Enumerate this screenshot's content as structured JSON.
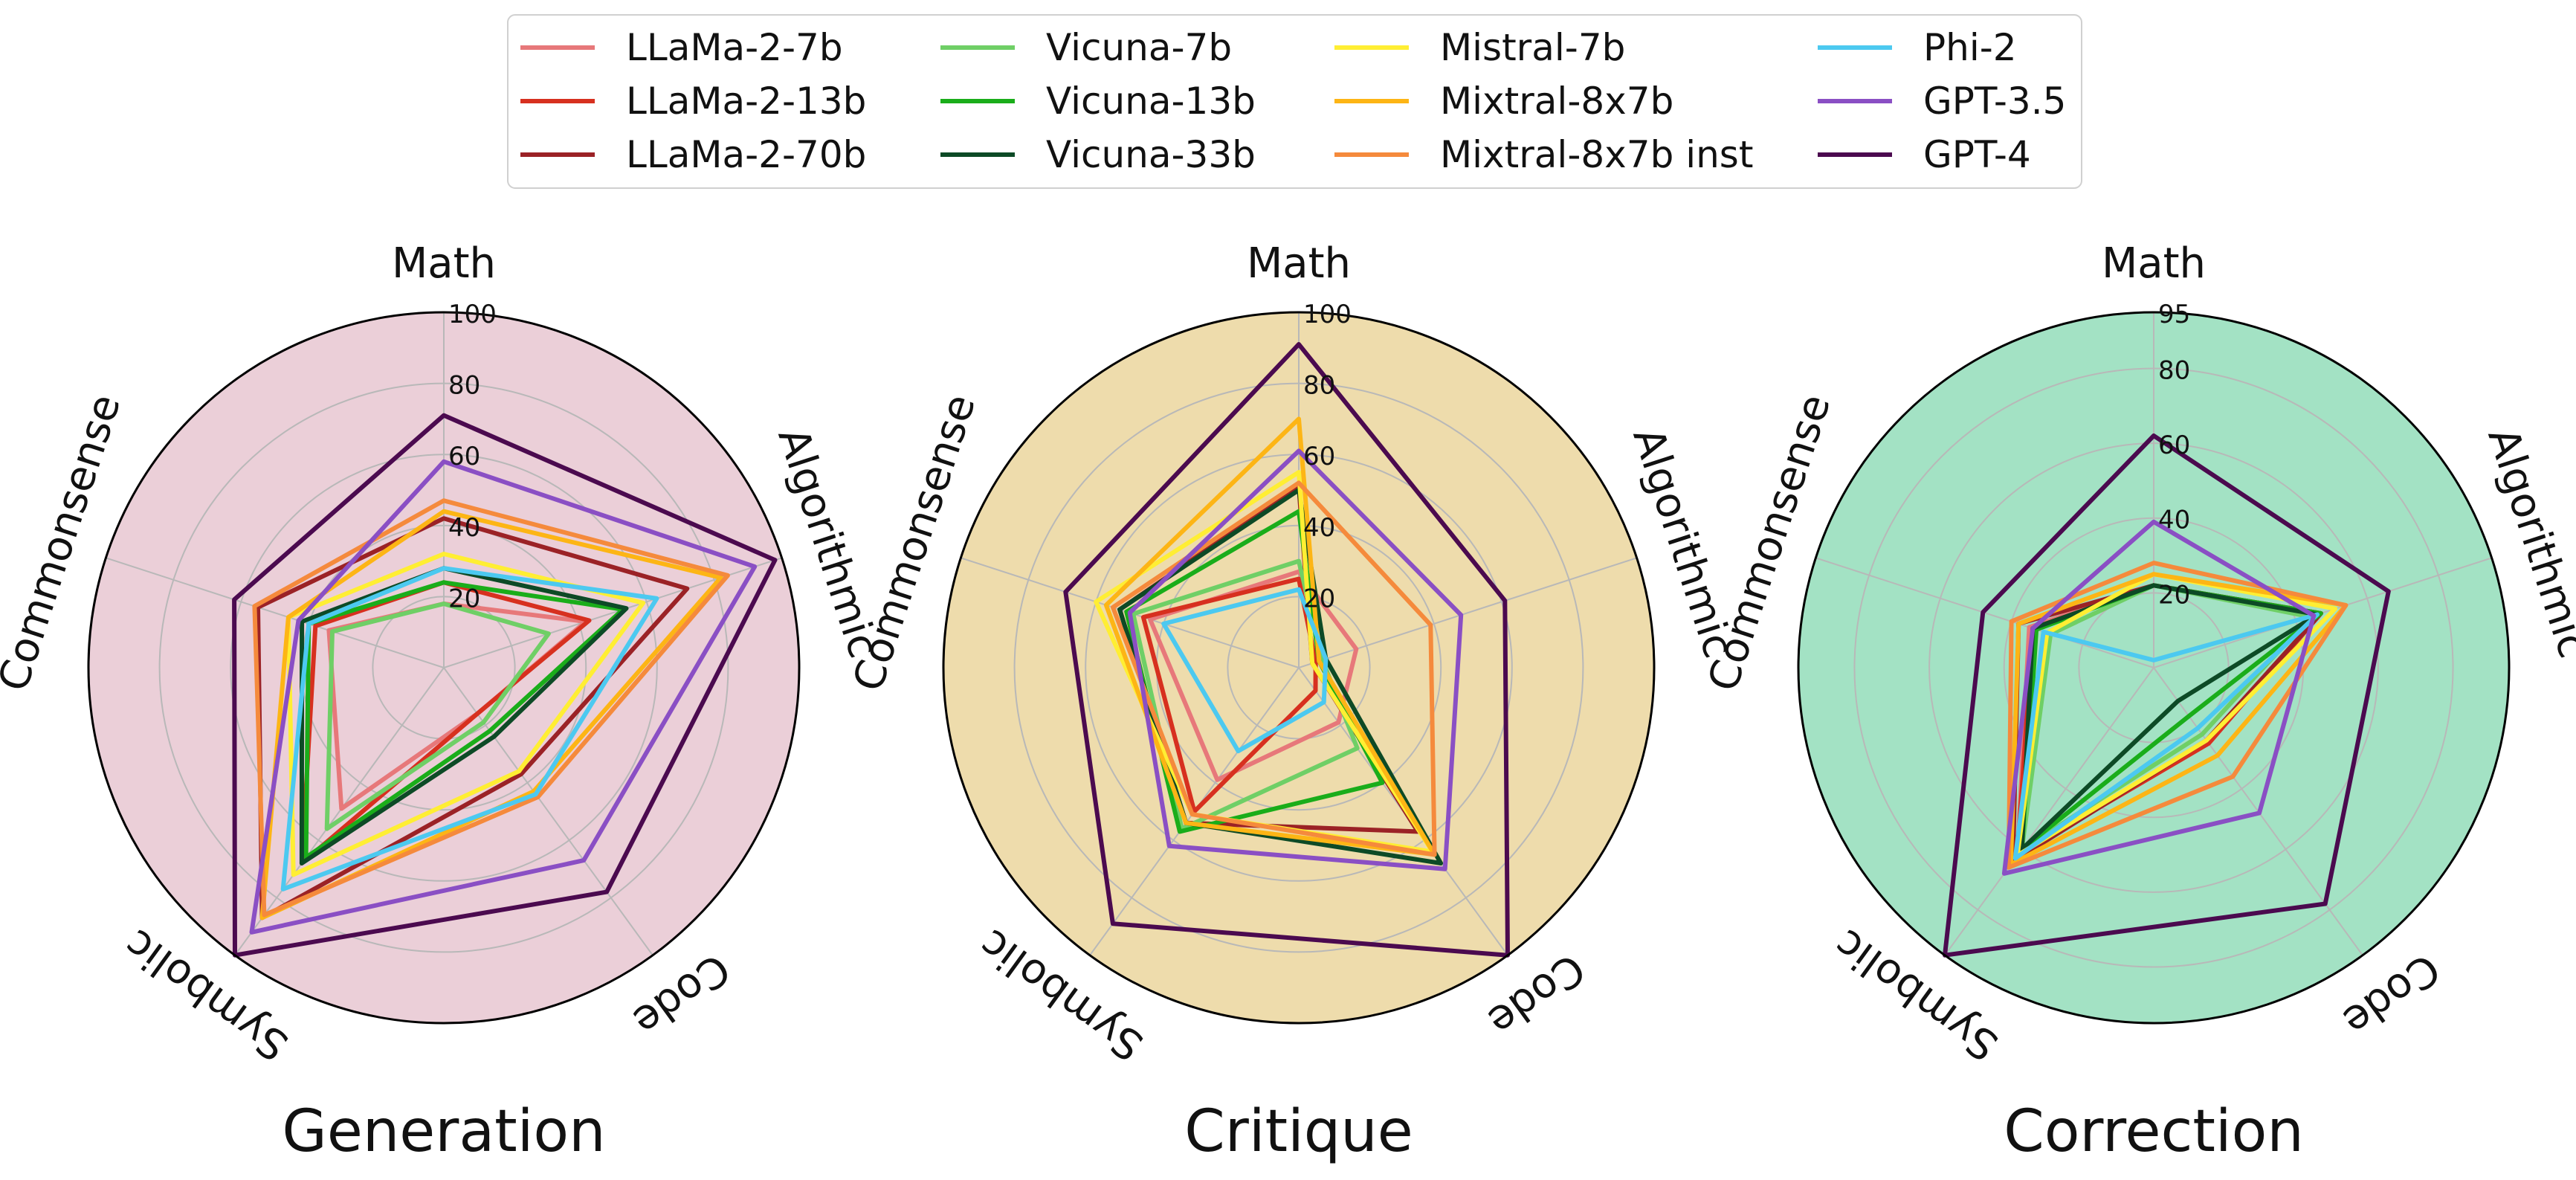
{
  "legend": {
    "placement": "top-center",
    "entries": [
      {
        "name": "LLaMa-2-7b",
        "color": "#e7787a"
      },
      {
        "name": "Vicuna-7b",
        "color": "#6fcf66"
      },
      {
        "name": "Mistral-7b",
        "color": "#ffee33"
      },
      {
        "name": "Phi-2",
        "color": "#4cc9f0"
      },
      {
        "name": "LLaMa-2-13b",
        "color": "#d7301f"
      },
      {
        "name": "Vicuna-13b",
        "color": "#1aad1a"
      },
      {
        "name": "Mixtral-8x7b",
        "color": "#fdb515"
      },
      {
        "name": "GPT-3.5",
        "color": "#8a4fc4"
      },
      {
        "name": "LLaMa-2-70b",
        "color": "#9b2226"
      },
      {
        "name": "Vicuna-33b",
        "color": "#0d4a26"
      },
      {
        "name": "Mixtral-8x7b inst",
        "color": "#f58a3c"
      },
      {
        "name": "GPT-4",
        "color": "#4b0a4f"
      }
    ]
  },
  "chart_data": [
    {
      "type": "radar",
      "title": "Generation",
      "background": "#ebcfd8",
      "axes": [
        "Math",
        "Algorithmic",
        "Code",
        "Symbolic",
        "Commonsense"
      ],
      "rmax": 100,
      "tick_labels": [
        "20",
        "40",
        "60",
        "80",
        "100"
      ],
      "tick_values": [
        20,
        40,
        60,
        80,
        100
      ],
      "grid": true,
      "series": [
        {
          "name": "LLaMa-2-7b",
          "values": [
            18,
            42,
            16,
            49,
            34
          ]
        },
        {
          "name": "LLaMa-2-13b",
          "values": [
            24,
            43,
            16,
            68,
            38
          ]
        },
        {
          "name": "LLaMa-2-70b",
          "values": [
            42,
            72,
            37,
            87,
            55
          ]
        },
        {
          "name": "Vicuna-7b",
          "values": [
            18,
            31,
            19,
            56,
            33
          ]
        },
        {
          "name": "Vicuna-13b",
          "values": [
            24,
            53,
            22,
            66,
            40
          ]
        },
        {
          "name": "Vicuna-33b",
          "values": [
            28,
            54,
            24,
            68,
            42
          ]
        },
        {
          "name": "Mistral-7b",
          "values": [
            32,
            59,
            36,
            72,
            46
          ]
        },
        {
          "name": "Mixtral-8x7b",
          "values": [
            44,
            82,
            43,
            87,
            46
          ]
        },
        {
          "name": "Mixtral-8x7b inst",
          "values": [
            47,
            84,
            45,
            86,
            56
          ]
        },
        {
          "name": "Phi-2",
          "values": [
            28,
            63,
            44,
            77,
            40
          ]
        },
        {
          "name": "GPT-3.5",
          "values": [
            58,
            92,
            67,
            92,
            43
          ]
        },
        {
          "name": "GPT-4",
          "values": [
            71,
            98,
            78,
            100,
            62
          ]
        }
      ]
    },
    {
      "type": "radar",
      "title": "Critique",
      "background": "#eedcac",
      "axes": [
        "Math",
        "Algorithmic",
        "Code",
        "Symbolic",
        "Commonsense"
      ],
      "rmax": 100,
      "tick_labels": [
        "20",
        "40",
        "60",
        "80",
        "100"
      ],
      "tick_values": [
        20,
        40,
        60,
        80,
        100
      ],
      "grid": true,
      "series": [
        {
          "name": "LLaMa-2-7b",
          "values": [
            27,
            17,
            19,
            39,
            44
          ]
        },
        {
          "name": "LLaMa-2-13b",
          "values": [
            25,
            5,
            8,
            50,
            46
          ]
        },
        {
          "name": "LLaMa-2-70b",
          "values": [
            51,
            4,
            57,
            54,
            53
          ]
        },
        {
          "name": "Vicuna-7b",
          "values": [
            30,
            7,
            28,
            56,
            49
          ]
        },
        {
          "name": "Vicuna-13b",
          "values": [
            44,
            6,
            40,
            57,
            51
          ]
        },
        {
          "name": "Vicuna-33b",
          "values": [
            50,
            8,
            68,
            54,
            53
          ]
        },
        {
          "name": "Mistral-7b",
          "values": [
            55,
            4,
            64,
            51,
            60
          ]
        },
        {
          "name": "Mixtral-8x7b",
          "values": [
            70,
            6,
            65,
            54,
            57
          ]
        },
        {
          "name": "Mixtral-8x7b inst",
          "values": [
            52,
            39,
            65,
            51,
            55
          ]
        },
        {
          "name": "Phi-2",
          "values": [
            22,
            8,
            12,
            29,
            40
          ]
        },
        {
          "name": "GPT-3.5",
          "values": [
            61,
            48,
            70,
            62,
            50
          ]
        },
        {
          "name": "GPT-4",
          "values": [
            91,
            61,
            100,
            89,
            69
          ]
        }
      ]
    },
    {
      "type": "radar",
      "title": "Correction",
      "background": "#a3e2c4",
      "axes": [
        "Math",
        "Algorithmic",
        "Code",
        "Symbolic",
        "Commonsense"
      ],
      "rmax": 95,
      "tick_labels": [
        "20",
        "40",
        "60",
        "80",
        "95"
      ],
      "tick_values": [
        20,
        40,
        60,
        80,
        95
      ],
      "grid": true,
      "series": [
        {
          "name": "LLaMa-2-7b",
          "values": [
            22,
            47,
            25,
            62,
            35
          ]
        },
        {
          "name": "LLaMa-2-13b",
          "values": [
            22,
            47,
            25,
            62,
            34
          ]
        },
        {
          "name": "LLaMa-2-70b",
          "values": [
            22,
            47,
            24,
            64,
            38
          ]
        },
        {
          "name": "Vicuna-7b",
          "values": [
            22,
            44,
            22,
            60,
            29
          ]
        },
        {
          "name": "Vicuna-13b",
          "values": [
            22,
            47,
            16,
            60,
            33
          ]
        },
        {
          "name": "Vicuna-33b",
          "values": [
            22,
            46,
            11,
            60,
            34
          ]
        },
        {
          "name": "Mistral-7b",
          "values": [
            25,
            51,
            24,
            62,
            30
          ]
        },
        {
          "name": "Mixtral-8x7b",
          "values": [
            25,
            54,
            29,
            65,
            38
          ]
        },
        {
          "name": "Mixtral-8x7b inst",
          "values": [
            28,
            54,
            36,
            66,
            40
          ]
        },
        {
          "name": "Phi-2",
          "values": [
            2,
            46,
            20,
            63,
            31
          ]
        },
        {
          "name": "GPT-3.5",
          "values": [
            39,
            45,
            48,
            68,
            34
          ]
        },
        {
          "name": "GPT-4",
          "values": [
            62,
            66,
            78,
            95,
            48
          ]
        }
      ]
    }
  ]
}
